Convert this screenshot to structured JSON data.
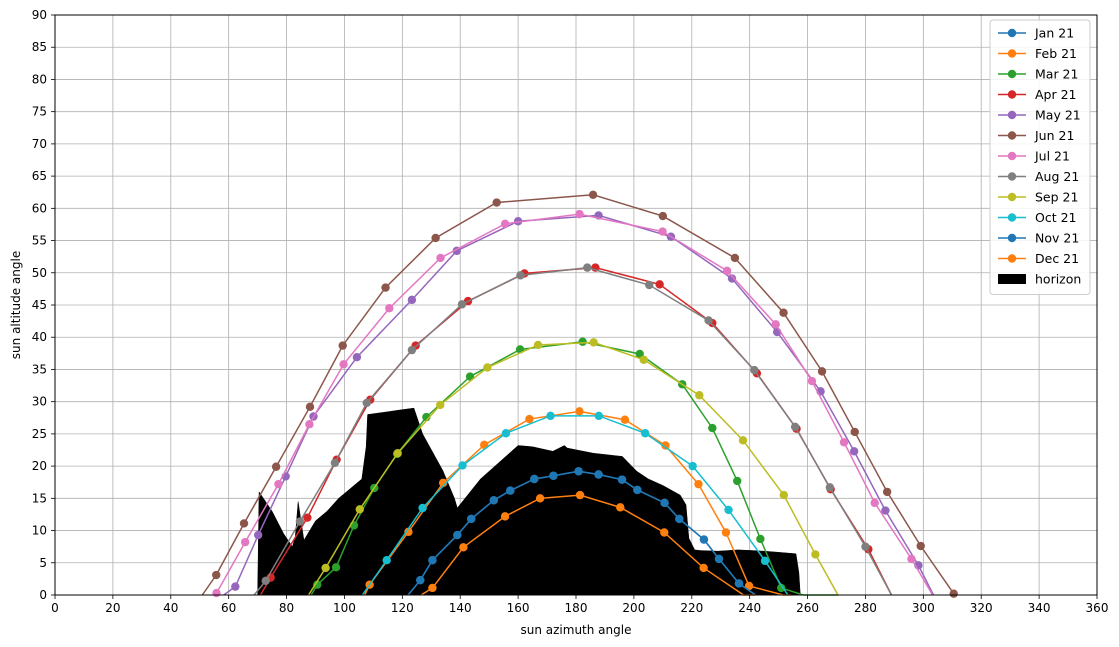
{
  "chart_data": {
    "type": "line",
    "xlabel": "sun azimuth angle",
    "ylabel": "sun altitude angle",
    "xlim": [
      0,
      360
    ],
    "ylim": [
      0,
      90
    ],
    "xticks": [
      0,
      20,
      40,
      60,
      80,
      100,
      120,
      140,
      160,
      180,
      200,
      220,
      240,
      260,
      280,
      300,
      320,
      340,
      360
    ],
    "yticks": [
      0,
      5,
      10,
      15,
      20,
      25,
      30,
      35,
      40,
      45,
      50,
      55,
      60,
      65,
      70,
      75,
      80,
      85,
      90
    ],
    "grid": true,
    "legend_position": "top-right",
    "series": [
      {
        "name": "Jan 21",
        "color": "#1f77b4",
        "x": [
          122.0,
          126.2,
          130.4,
          139.0,
          143.8,
          151.6,
          157.3,
          165.6,
          172.2,
          180.9,
          187.8,
          195.9,
          201.2,
          210.6,
          215.7,
          224.2,
          229.4,
          236.3,
          242.0
        ],
        "y": [
          0,
          2.3,
          5.4,
          9.3,
          11.8,
          14.7,
          16.2,
          18.0,
          18.5,
          19.2,
          18.7,
          17.9,
          16.3,
          14.3,
          11.8,
          8.6,
          5.6,
          1.8,
          0
        ]
      },
      {
        "name": "Feb 21",
        "color": "#ff7f0e",
        "x": [
          107.0,
          108.7,
          122.1,
          134.1,
          148.3,
          163.9,
          181.2,
          196.9,
          210.9,
          222.3,
          231.8,
          239.8,
          251.6,
          254.5
        ],
        "y": [
          0,
          1.6,
          9.8,
          17.4,
          23.3,
          27.3,
          28.5,
          27.2,
          23.2,
          17.2,
          9.7,
          1.4,
          0,
          0
        ]
      },
      {
        "name": "Mar 21",
        "color": "#2ca02c",
        "x": [
          88.5,
          90.6,
          97.1,
          103.3,
          110.3,
          118.2,
          128.3,
          143.4,
          160.7,
          182.3,
          202.0,
          216.7,
          227.1,
          235.7,
          243.7,
          250.9,
          258.5,
          265.7,
          270.6
        ],
        "y": [
          0,
          1.6,
          4.3,
          10.8,
          16.6,
          21.9,
          27.6,
          33.9,
          38.1,
          39.3,
          37.4,
          32.7,
          25.9,
          17.7,
          8.7,
          1.1,
          0,
          0,
          0
        ]
      },
      {
        "name": "Apr 21",
        "color": "#d62728",
        "x": [
          71.0,
          74.5,
          87.2,
          97.3,
          108.9,
          124.6,
          142.7,
          162.2,
          186.7,
          208.9,
          227.1,
          242.5,
          256.2,
          268.0,
          281.0,
          289.0
        ],
        "y": [
          0,
          2.7,
          12.0,
          21.0,
          30.3,
          38.7,
          45.6,
          49.9,
          50.8,
          48.2,
          42.2,
          34.4,
          25.8,
          16.4,
          7.1,
          0
        ]
      },
      {
        "name": "May 21",
        "color": "#9467bd",
        "x": [
          58.3,
          62.3,
          70.2,
          79.7,
          89.3,
          104.3,
          123.3,
          138.8,
          160.0,
          187.8,
          212.8,
          233.9,
          249.5,
          264.5,
          276.1,
          286.9,
          298.3,
          303.5
        ],
        "y": [
          0,
          1.3,
          9.3,
          18.4,
          27.7,
          36.9,
          45.8,
          53.4,
          58.0,
          58.9,
          55.6,
          49.1,
          40.8,
          31.6,
          22.3,
          13.1,
          4.6,
          0
        ]
      },
      {
        "name": "Jun 21",
        "color": "#8c564b",
        "x": [
          50.9,
          55.7,
          65.3,
          76.4,
          88.1,
          99.4,
          114.2,
          131.5,
          152.6,
          185.9,
          210.0,
          234.9,
          251.7,
          265.0,
          276.3,
          287.5,
          299.1,
          310.5
        ],
        "y": [
          0,
          3.1,
          11.1,
          19.9,
          29.2,
          38.7,
          47.7,
          55.4,
          60.9,
          62.1,
          58.8,
          52.3,
          43.8,
          34.7,
          25.3,
          16.0,
          7.6,
          0.2
        ]
      },
      {
        "name": "Jul 21",
        "color": "#e377c2",
        "x": [
          54.9,
          55.8,
          65.7,
          77.2,
          87.9,
          99.7,
          115.5,
          133.2,
          155.5,
          181.2,
          209.9,
          232.2,
          249.0,
          261.5,
          272.6,
          283.2,
          295.9,
          303.2
        ],
        "y": [
          0,
          0.3,
          8.2,
          17.2,
          26.5,
          35.8,
          44.5,
          52.3,
          57.6,
          59.1,
          56.4,
          50.3,
          42.0,
          33.2,
          23.7,
          14.3,
          5.6,
          0
        ]
      },
      {
        "name": "Aug 21",
        "color": "#7f7f7f",
        "x": [
          68.8,
          72.8,
          84.6,
          96.7,
          107.7,
          123.3,
          140.6,
          160.8,
          183.9,
          205.3,
          225.8,
          241.6,
          255.7,
          267.7,
          280.0,
          289.0
        ],
        "y": [
          0,
          2.2,
          11.4,
          20.5,
          29.8,
          38.0,
          45.1,
          49.6,
          50.8,
          48.1,
          42.6,
          34.9,
          26.1,
          16.7,
          7.5,
          0
        ]
      },
      {
        "name": "Sep 21",
        "color": "#bcbd22",
        "x": [
          87.6,
          93.5,
          105.3,
          118.4,
          133.1,
          149.4,
          166.9,
          186.1,
          203.4,
          222.6,
          237.7,
          251.8,
          262.7,
          270.5
        ],
        "y": [
          0,
          4.2,
          13.3,
          22.0,
          29.5,
          35.3,
          38.8,
          39.2,
          36.5,
          31.0,
          24.0,
          15.5,
          6.3,
          0
        ]
      },
      {
        "name": "Oct 21",
        "color": "#17becf",
        "x": [
          106.2,
          114.6,
          127.0,
          140.8,
          155.8,
          171.2,
          187.9,
          203.9,
          220.3,
          232.7,
          245.3,
          253.2
        ],
        "y": [
          0,
          5.4,
          13.5,
          20.1,
          25.1,
          27.8,
          27.8,
          25.1,
          20.0,
          13.2,
          5.3,
          0
        ]
      },
      {
        "name": "Nov 21",
        "color": "#1f77b4",
        "x": [
          122.0,
          126.2,
          130.4,
          139.0,
          143.8,
          151.6,
          157.3,
          165.6,
          172.2,
          180.9,
          187.8,
          195.9,
          201.2,
          210.6,
          215.7,
          224.2,
          229.4,
          236.3,
          242.0
        ],
        "y": [
          0,
          2.3,
          5.4,
          9.3,
          11.8,
          14.7,
          16.2,
          18.0,
          18.5,
          19.2,
          18.7,
          17.9,
          16.3,
          14.3,
          11.8,
          8.6,
          5.6,
          1.8,
          0
        ]
      },
      {
        "name": "Dec 21",
        "color": "#ff7f0e",
        "x": [
          126.5,
          130.4,
          141.1,
          155.5,
          167.6,
          181.4,
          195.3,
          210.5,
          224.1,
          237.9,
          242.0
        ],
        "y": [
          0,
          1.1,
          7.4,
          12.2,
          15.0,
          15.5,
          13.6,
          9.7,
          4.2,
          0,
          0
        ]
      }
    ],
    "horizon": {
      "name": "horizon",
      "color": "#000000",
      "x": [
        70,
        70.5,
        75,
        79,
        82,
        83,
        84,
        86,
        90,
        94,
        98,
        106,
        107.5,
        108,
        116,
        119,
        124,
        127,
        134,
        138,
        139,
        147,
        152,
        160,
        165,
        170,
        172,
        176,
        177,
        186,
        196,
        201,
        205,
        210,
        216,
        218,
        219,
        221,
        223,
        229,
        236,
        241,
        245,
        248,
        256,
        257,
        257.5
      ],
      "y": [
        0,
        16,
        13,
        9.5,
        7.5,
        9,
        14.5,
        8.5,
        11.5,
        13,
        15,
        18,
        23,
        28,
        28.5,
        28.7,
        29,
        25,
        19.3,
        15,
        13.5,
        18,
        20,
        23.2,
        23,
        22.5,
        22.3,
        23.2,
        22.8,
        22,
        21.5,
        19.2,
        18,
        17,
        15.5,
        14,
        8.8,
        7,
        6.9,
        6.8,
        7.0,
        6.9,
        6.8,
        6.7,
        6.4,
        3.5,
        0
      ]
    }
  }
}
